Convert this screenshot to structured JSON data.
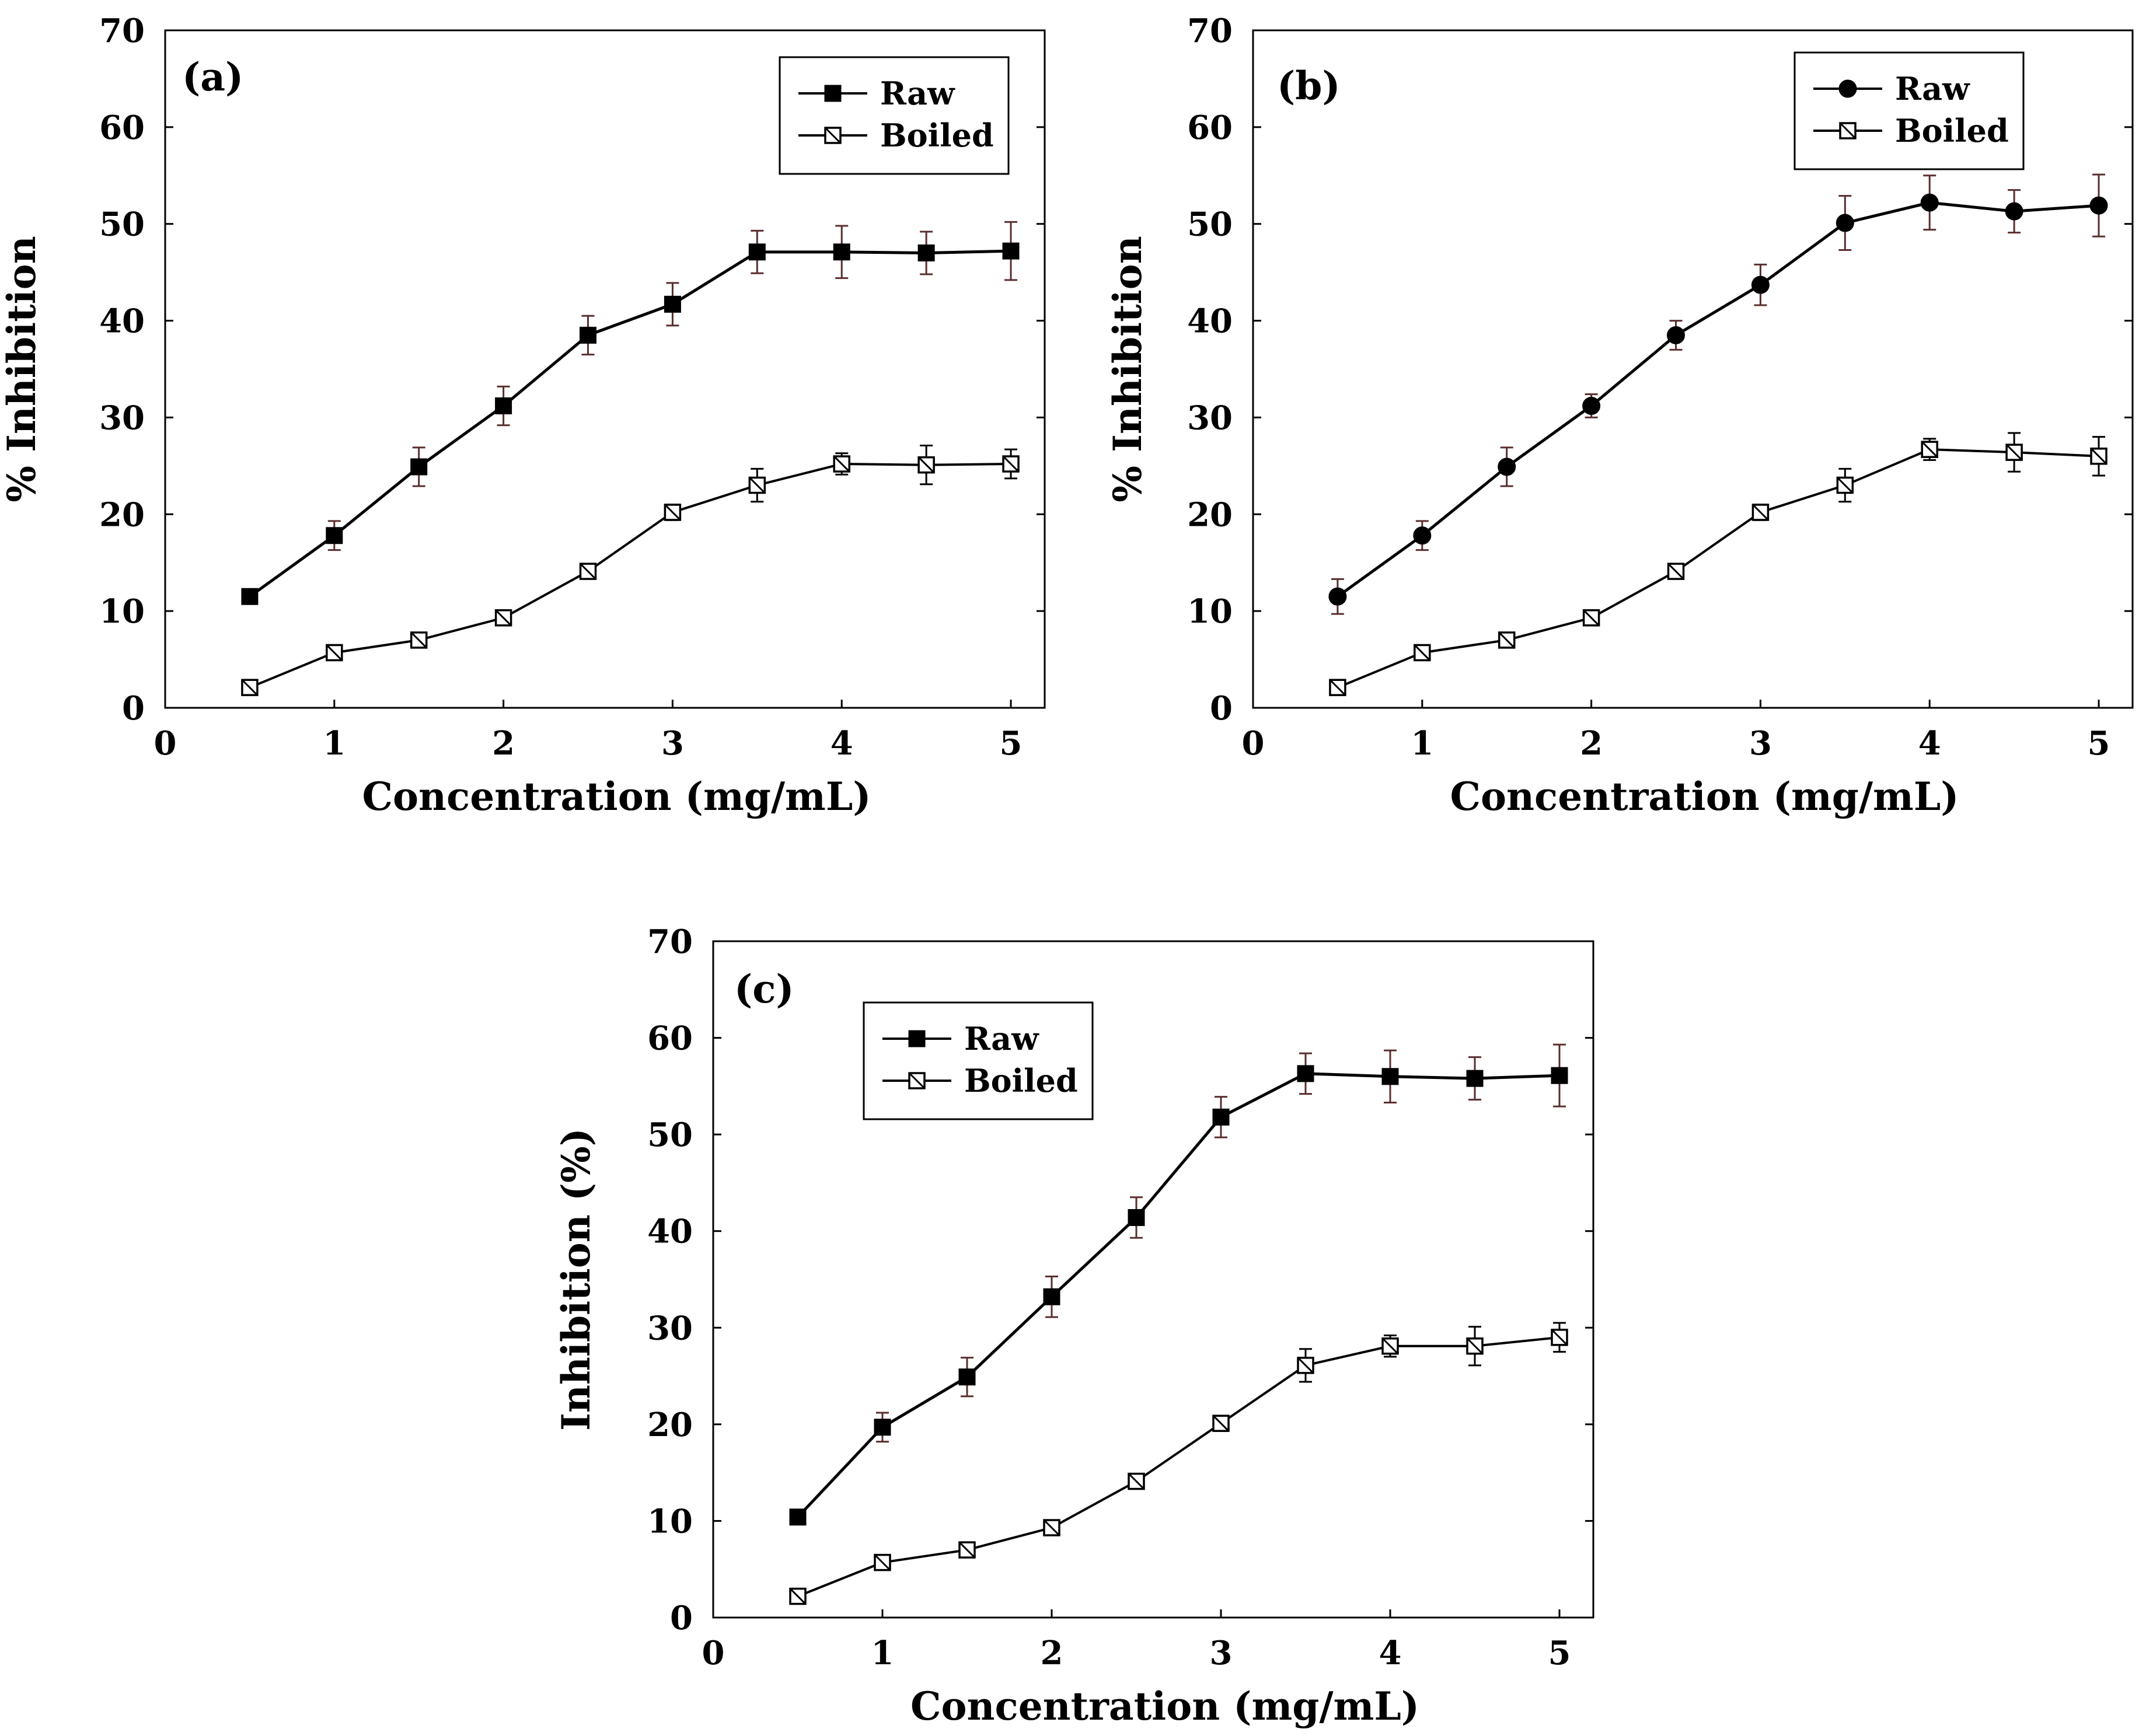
{
  "chart_data": [
    {
      "type": "line",
      "panel_label": "(a)",
      "xlabel": "Concentration (mg/mL)",
      "ylabel": "% Inhibition",
      "xlim": [
        0,
        5.2
      ],
      "ylim": [
        0,
        70
      ],
      "x_ticks": [
        0,
        1,
        2,
        3,
        4,
        5
      ],
      "y_ticks": [
        0,
        10,
        20,
        30,
        40,
        50,
        60,
        70
      ],
      "legend_position": "top-right",
      "x": [
        0.5,
        1,
        1.5,
        2,
        2.5,
        3,
        3.5,
        4,
        4.5,
        5
      ],
      "series": [
        {
          "name": "Raw",
          "marker": "filled-square",
          "values": [
            11.5,
            17.8,
            24.9,
            31.2,
            38.5,
            41.7,
            47.1,
            47.1,
            47.0,
            47.2
          ],
          "errors": [
            0.5,
            1.5,
            2.0,
            2.0,
            2.0,
            2.2,
            2.2,
            2.7,
            2.2,
            3.0
          ]
        },
        {
          "name": "Boiled",
          "marker": "hatched-square",
          "values": [
            2.1,
            5.7,
            7.0,
            9.3,
            14.1,
            20.2,
            23.0,
            25.2,
            25.1,
            25.2
          ],
          "errors": [
            0.4,
            0.5,
            0.5,
            0.5,
            0.7,
            0.8,
            1.7,
            1.1,
            2.0,
            1.5
          ]
        }
      ]
    },
    {
      "type": "line",
      "panel_label": "(b)",
      "xlabel": "Concentration (mg/mL)",
      "ylabel": "% Inhibition",
      "xlim": [
        0,
        5.2
      ],
      "ylim": [
        0,
        70
      ],
      "x_ticks": [
        0,
        1,
        2,
        3,
        4,
        5
      ],
      "y_ticks": [
        0,
        10,
        20,
        30,
        40,
        50,
        60,
        70
      ],
      "legend_position": "top-right",
      "x": [
        0.5,
        1,
        1.5,
        2,
        2.5,
        3,
        3.5,
        4,
        4.5,
        5
      ],
      "series": [
        {
          "name": "Raw",
          "marker": "filled-circle",
          "values": [
            11.5,
            17.8,
            24.9,
            31.2,
            38.5,
            43.7,
            50.1,
            52.2,
            51.3,
            51.9
          ],
          "errors": [
            1.8,
            1.5,
            2.0,
            1.2,
            1.5,
            2.1,
            2.8,
            2.8,
            2.2,
            3.2
          ]
        },
        {
          "name": "Boiled",
          "marker": "hatched-square",
          "values": [
            2.1,
            5.7,
            7.0,
            9.3,
            14.1,
            20.2,
            23.0,
            26.7,
            26.4,
            26.0
          ],
          "errors": [
            0.4,
            0.5,
            0.5,
            0.5,
            0.7,
            0.8,
            1.7,
            1.1,
            2.0,
            2.0
          ]
        }
      ]
    },
    {
      "type": "line",
      "panel_label": "(c)",
      "xlabel": "Concentration (mg/mL)",
      "ylabel": "Inhibition (%)",
      "xlim": [
        0,
        5.2
      ],
      "ylim": [
        0,
        70
      ],
      "x_ticks": [
        0,
        1,
        2,
        3,
        4,
        5
      ],
      "y_ticks": [
        0,
        10,
        20,
        30,
        40,
        50,
        60,
        70
      ],
      "legend_position": "top-left",
      "x": [
        0.5,
        1,
        1.5,
        2,
        2.5,
        3,
        3.5,
        4,
        4.5,
        5
      ],
      "series": [
        {
          "name": "Raw",
          "marker": "filled-square",
          "values": [
            10.4,
            19.7,
            24.9,
            33.2,
            41.4,
            51.8,
            56.3,
            56.0,
            55.8,
            56.1
          ],
          "errors": [
            0.5,
            1.5,
            2.0,
            2.1,
            2.1,
            2.1,
            2.1,
            2.7,
            2.2,
            3.2
          ]
        },
        {
          "name": "Boiled",
          "marker": "hatched-square",
          "values": [
            2.2,
            5.7,
            7.0,
            9.3,
            14.1,
            20.1,
            26.1,
            28.1,
            28.1,
            29.0
          ],
          "errors": [
            0.4,
            0.5,
            0.5,
            0.5,
            0.7,
            0.8,
            1.7,
            1.1,
            2.0,
            1.5
          ]
        }
      ]
    }
  ]
}
